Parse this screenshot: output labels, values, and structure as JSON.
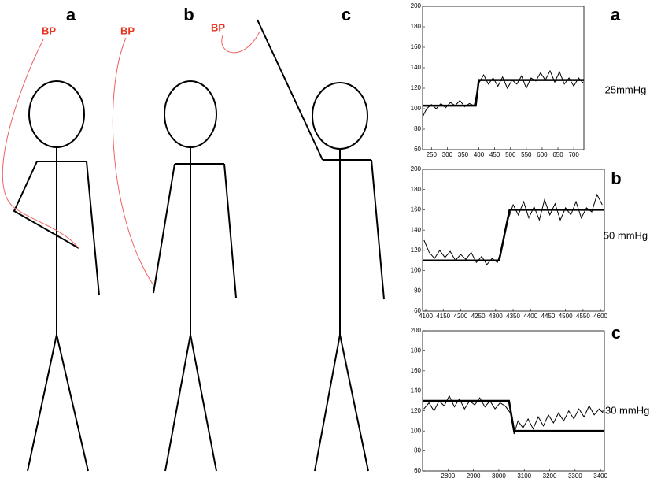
{
  "figure": {
    "panels": [
      {
        "label": "a",
        "marker": "BP"
      },
      {
        "label": "b",
        "marker": "BP"
      },
      {
        "label": "c",
        "marker": "BP"
      }
    ]
  },
  "chart_data": [
    {
      "type": "line",
      "label": "a",
      "annotation": "25mmHg",
      "xlim": [
        222,
        732
      ],
      "xticks": [
        250,
        300,
        350,
        400,
        450,
        500,
        550,
        600,
        650,
        700
      ],
      "ylim": [
        60,
        200
      ],
      "yticks": [
        60,
        80,
        100,
        120,
        140,
        160,
        180,
        200
      ],
      "series": [
        {
          "color": "#000000",
          "x": [
            222,
            235,
            250,
            265,
            280,
            295,
            310,
            325,
            340,
            355,
            370,
            385,
            400,
            415,
            430,
            445,
            460,
            475,
            490,
            505,
            520,
            535,
            550,
            565,
            580,
            595,
            610,
            625,
            640,
            655,
            670,
            685,
            700,
            715,
            730
          ],
          "values": [
            92,
            100,
            104,
            100,
            105,
            101,
            106,
            103,
            108,
            102,
            105,
            103,
            125,
            133,
            124,
            130,
            122,
            131,
            120,
            128,
            124,
            132,
            120,
            130,
            127,
            135,
            128,
            137,
            126,
            136,
            124,
            130,
            122,
            130,
            125
          ]
        },
        {
          "color": "#000000",
          "x": [
            222,
            390,
            400,
            732
          ],
          "values": [
            103,
            103,
            128,
            128
          ]
        }
      ]
    },
    {
      "type": "line",
      "label": "b",
      "annotation": "50 mmHg",
      "xlim": [
        4091,
        4611
      ],
      "xticks": [
        4100,
        4150,
        4200,
        4250,
        4300,
        4350,
        4400,
        4450,
        4500,
        4550,
        4600
      ],
      "ylim": [
        60,
        200
      ],
      "yticks": [
        60,
        80,
        100,
        120,
        140,
        160,
        180,
        200
      ],
      "series": [
        {
          "color": "#000000",
          "x": [
            4095,
            4110,
            4125,
            4140,
            4155,
            4170,
            4185,
            4200,
            4215,
            4230,
            4245,
            4260,
            4275,
            4290,
            4305,
            4320,
            4335,
            4350,
            4365,
            4380,
            4395,
            4410,
            4425,
            4440,
            4455,
            4470,
            4485,
            4500,
            4515,
            4530,
            4545,
            4560,
            4575,
            4590,
            4605
          ],
          "values": [
            130,
            118,
            112,
            120,
            113,
            119,
            110,
            116,
            111,
            118,
            108,
            114,
            106,
            112,
            108,
            125,
            150,
            165,
            155,
            168,
            152,
            163,
            150,
            170,
            155,
            166,
            150,
            162,
            155,
            168,
            152,
            162,
            158,
            175,
            165
          ]
        },
        {
          "color": "#000000",
          "x": [
            4091,
            4310,
            4340,
            4611
          ],
          "values": [
            110,
            110,
            160,
            160
          ]
        }
      ]
    },
    {
      "type": "line",
      "label": "c",
      "annotation": "-30 mmHg",
      "xlim": [
        2700,
        3415
      ],
      "xticks": [
        2800,
        2900,
        3000,
        3100,
        3200,
        3300,
        3400
      ],
      "ylim": [
        60,
        200
      ],
      "yticks": [
        60,
        80,
        100,
        120,
        140,
        160,
        180,
        200
      ],
      "series": [
        {
          "color": "#000000",
          "x": [
            2705,
            2725,
            2745,
            2765,
            2785,
            2805,
            2825,
            2845,
            2865,
            2885,
            2905,
            2925,
            2945,
            2965,
            2985,
            3005,
            3025,
            3045,
            3060,
            3075,
            3095,
            3115,
            3135,
            3155,
            3175,
            3195,
            3215,
            3235,
            3255,
            3275,
            3295,
            3315,
            3335,
            3355,
            3375,
            3395,
            3410
          ],
          "values": [
            122,
            128,
            120,
            130,
            125,
            135,
            124,
            132,
            122,
            130,
            126,
            133,
            124,
            130,
            122,
            128,
            125,
            118,
            97,
            110,
            103,
            112,
            102,
            114,
            105,
            116,
            108,
            118,
            110,
            120,
            112,
            122,
            114,
            125,
            116,
            122,
            118
          ]
        },
        {
          "color": "#000000",
          "x": [
            2700,
            3040,
            3060,
            3415
          ],
          "values": [
            130,
            130,
            100,
            100
          ]
        }
      ]
    }
  ]
}
